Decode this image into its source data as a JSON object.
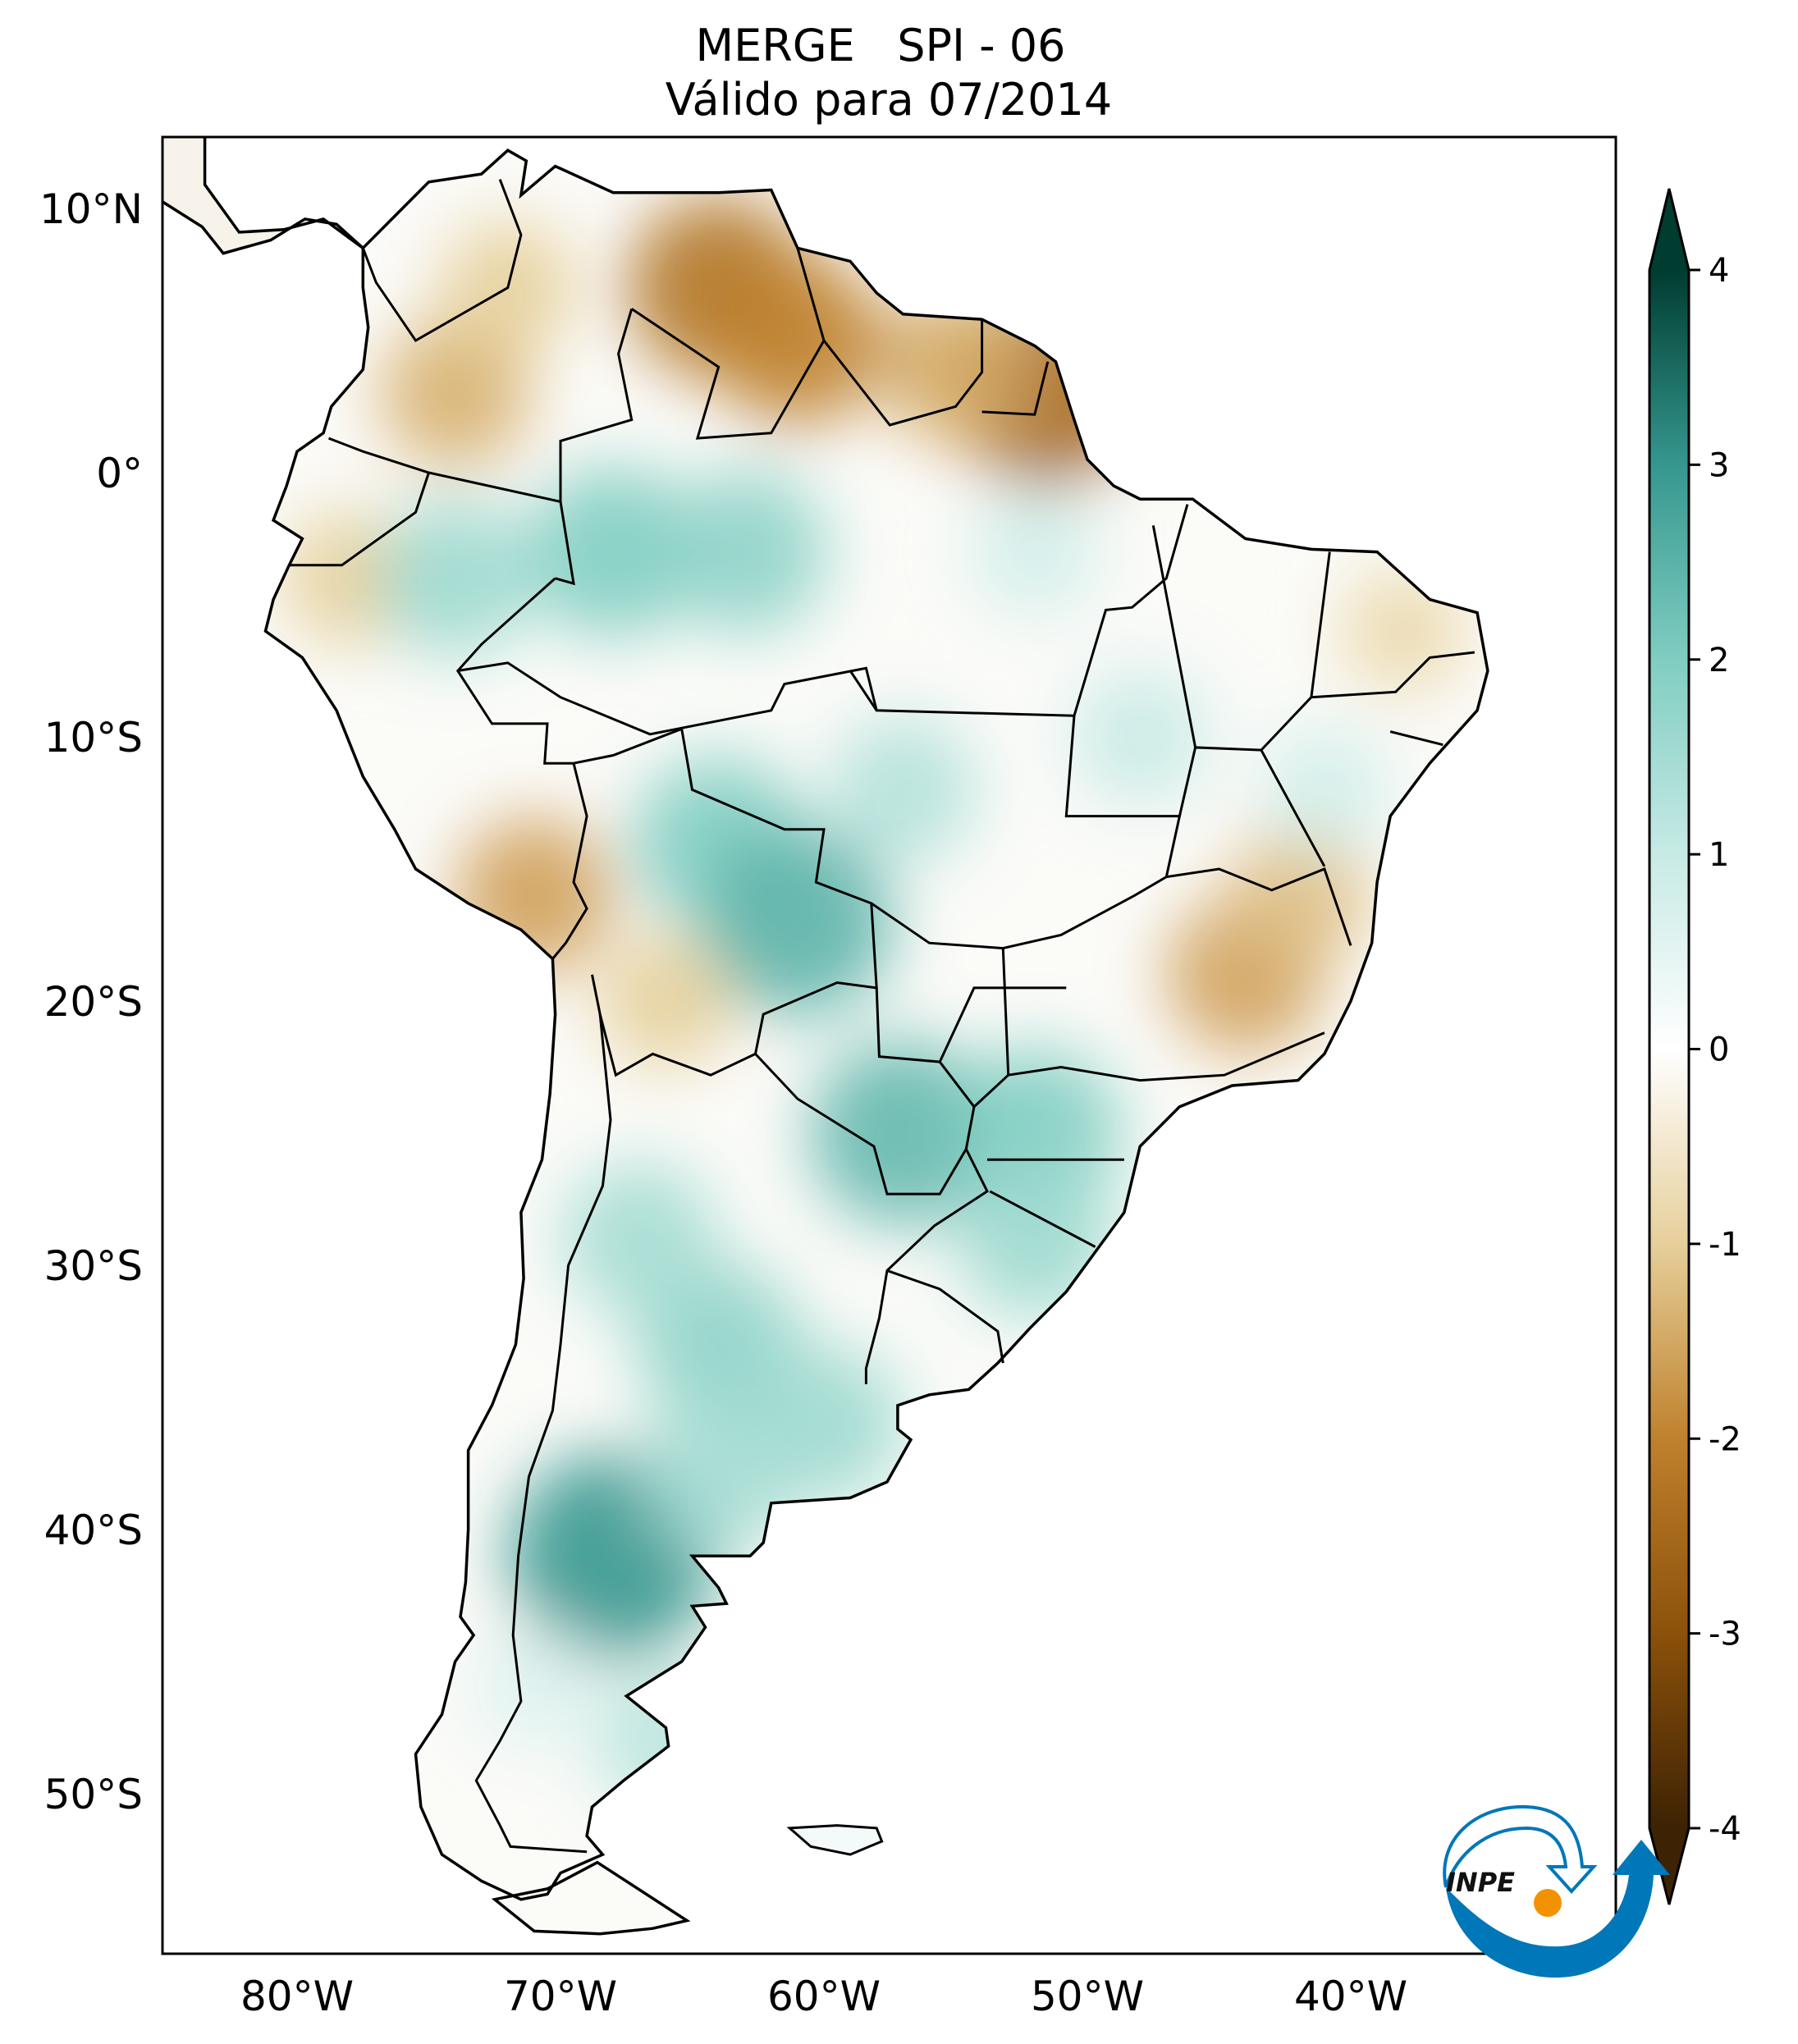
{
  "chart_data": {
    "type": "heatmap",
    "title": "MERGE   SPI - 06",
    "subtitle": "Válido para 07/2014",
    "xlabel": "",
    "ylabel": "",
    "xlim": [
      -85,
      -30
    ],
    "ylim": [
      -56,
      12.7
    ],
    "x_ticks": [
      {
        "value": -80,
        "label": "80°W"
      },
      {
        "value": -70,
        "label": "70°W"
      },
      {
        "value": -60,
        "label": "60°W"
      },
      {
        "value": -50,
        "label": "50°W"
      },
      {
        "value": -40,
        "label": "40°W"
      }
    ],
    "y_ticks": [
      {
        "value": 10,
        "label": "10°N"
      },
      {
        "value": 0,
        "label": "0°"
      },
      {
        "value": -10,
        "label": "10°S"
      },
      {
        "value": -20,
        "label": "20°S"
      },
      {
        "value": -30,
        "label": "30°S"
      },
      {
        "value": -40,
        "label": "40°S"
      },
      {
        "value": -50,
        "label": "50°S"
      }
    ],
    "colorbar": {
      "colormap": "BrBG",
      "range": [
        -4,
        4
      ],
      "extend": "both",
      "ticks": [
        {
          "value": 4,
          "label": "4"
        },
        {
          "value": 3,
          "label": "3"
        },
        {
          "value": 2,
          "label": "2"
        },
        {
          "value": 1,
          "label": "1"
        },
        {
          "value": 0,
          "label": "0"
        },
        {
          "value": -1,
          "label": "-1"
        },
        {
          "value": -2,
          "label": "-2"
        },
        {
          "value": -3,
          "label": "-3"
        },
        {
          "value": -4,
          "label": "-4"
        }
      ],
      "colors": [
        "#3d2204",
        "#8c510a",
        "#bf812d",
        "#e6cf9a",
        "#ffffff",
        "#c7eae5",
        "#80cdc1",
        "#35978f",
        "#003c30"
      ]
    },
    "spi_field_samples": [
      {
        "lon": -64,
        "lat": 7,
        "spi": -2.3
      },
      {
        "lon": -61,
        "lat": 5,
        "spi": -2.0
      },
      {
        "lon": -74,
        "lat": 3,
        "spi": -1.4
      },
      {
        "lon": -72,
        "lat": 7,
        "spi": -1.0
      },
      {
        "lon": -51.5,
        "lat": 3,
        "spi": -2.5
      },
      {
        "lon": -55,
        "lat": 4,
        "spi": -1.5
      },
      {
        "lon": -44,
        "lat": -19,
        "spi": -1.6
      },
      {
        "lon": -42,
        "lat": -16,
        "spi": -1.2
      },
      {
        "lon": -71,
        "lat": -16,
        "spi": -1.6
      },
      {
        "lon": -66,
        "lat": -20,
        "spi": -1.0
      },
      {
        "lon": -78,
        "lat": -4,
        "spi": -1.0
      },
      {
        "lon": -38,
        "lat": -6,
        "spi": -0.8
      },
      {
        "lon": -68,
        "lat": -3,
        "spi": 2.0
      },
      {
        "lon": -74,
        "lat": -4,
        "spi": 1.6
      },
      {
        "lon": -63,
        "lat": -3,
        "spi": 1.8
      },
      {
        "lon": -64,
        "lat": -14,
        "spi": 2.0
      },
      {
        "lon": -61,
        "lat": -17,
        "spi": 2.5
      },
      {
        "lon": -57,
        "lat": -12,
        "spi": 1.3
      },
      {
        "lon": -57,
        "lat": -25,
        "spi": 2.4
      },
      {
        "lon": -52,
        "lat": -25,
        "spi": 2.0
      },
      {
        "lon": -52,
        "lat": -29,
        "spi": 1.6
      },
      {
        "lon": -64,
        "lat": -33,
        "spi": 1.8
      },
      {
        "lon": -67,
        "lat": -29,
        "spi": 1.5
      },
      {
        "lon": -60,
        "lat": -36,
        "spi": 1.6
      },
      {
        "lon": -68,
        "lat": -41,
        "spi": 3.0
      },
      {
        "lon": -64,
        "lat": -38,
        "spi": 1.5
      },
      {
        "lon": -66,
        "lat": -48,
        "spi": 1.2
      },
      {
        "lon": -71,
        "lat": -46,
        "spi": 0.6
      },
      {
        "lon": -48,
        "lat": -10,
        "spi": 1.0
      },
      {
        "lon": -41,
        "lat": -12,
        "spi": 0.8
      },
      {
        "lon": -52,
        "lat": -3,
        "spi": 0.8
      }
    ]
  },
  "logo": {
    "text": "INPE"
  }
}
